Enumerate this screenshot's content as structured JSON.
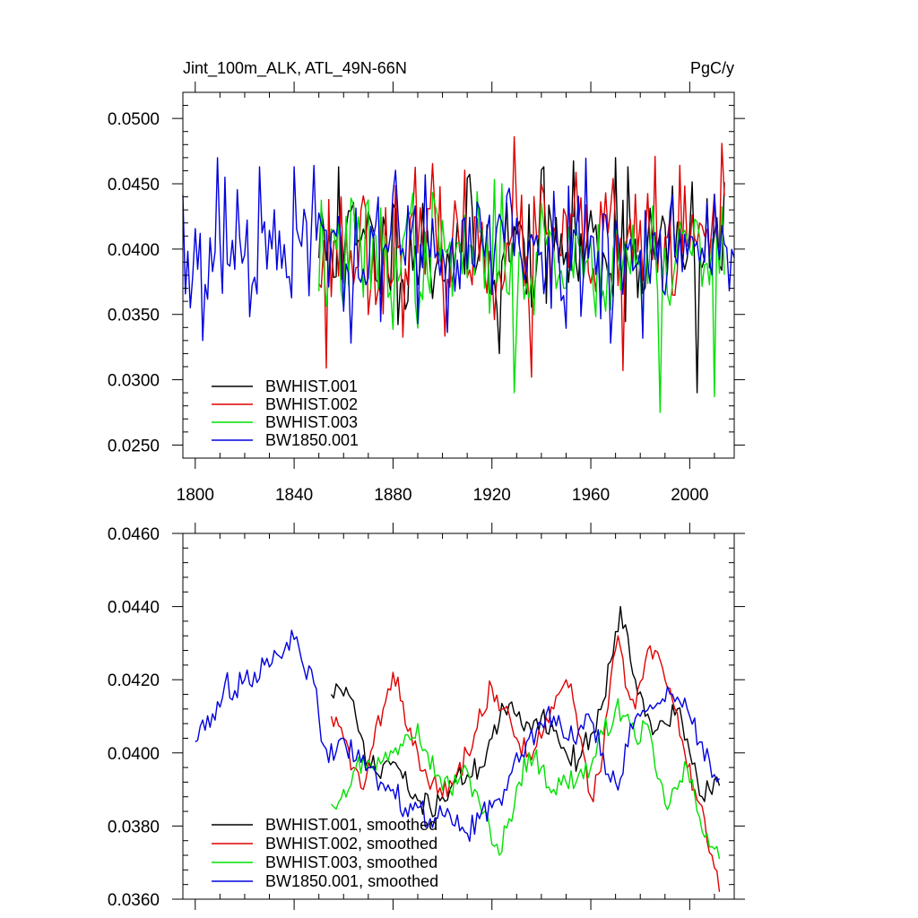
{
  "units_label": "PgC/y",
  "colors": {
    "black": "#000000",
    "red": "#e00000",
    "green": "#00e000",
    "blue": "#0000e0"
  },
  "chart_data": [
    {
      "type": "line",
      "title": "Jint_100m_ALK, ATL_49N-66N",
      "units": "PgC/y",
      "xlim": [
        1795,
        2018
      ],
      "ylim": [
        0.024,
        0.052
      ],
      "xticks": [
        1800,
        1840,
        1880,
        1920,
        1960,
        2000
      ],
      "xtick_labels": [
        "1800",
        "1840",
        "1880",
        "1920",
        "1960",
        "2000"
      ],
      "yticks": [
        0.025,
        0.03,
        0.035,
        0.04,
        0.045,
        0.05
      ],
      "ytick_labels": [
        "0.0250",
        "0.0300",
        "0.0350",
        "0.0400",
        "0.0450",
        "0.0500"
      ],
      "legend": [
        "BWHIST.001",
        "BWHIST.002",
        "BWHIST.003",
        "BW1850.001"
      ],
      "legend_position": "bottom-left",
      "series": [
        {
          "name": "BWHIST.001",
          "color": "#000000",
          "x_start": 1850,
          "x_end": 2014,
          "seed": 11,
          "mean": 0.04,
          "sd": 0.0025,
          "ar": 0.15,
          "lo": 0.0288,
          "hi": 0.047,
          "anchors": [
            [
              1858,
              0.0463
            ],
            [
              1923,
              0.032
            ],
            [
              1941,
              0.0463
            ],
            [
              1970,
              0.047
            ],
            [
              1975,
              0.0463
            ],
            [
              2003,
              0.029
            ]
          ]
        },
        {
          "name": "BWHIST.002",
          "color": "#e00000",
          "x_start": 1850,
          "x_end": 2014,
          "seed": 23,
          "mean": 0.0402,
          "sd": 0.0026,
          "ar": 0.15,
          "lo": 0.0305,
          "hi": 0.0487,
          "anchors": [
            [
              1853,
              0.0309
            ],
            [
              1929,
              0.0486
            ],
            [
              1936,
              0.0302
            ],
            [
              1973,
              0.0307
            ],
            [
              1986,
              0.0471
            ]
          ]
        },
        {
          "name": "BWHIST.003",
          "color": "#00e000",
          "x_start": 1850,
          "x_end": 2014,
          "seed": 37,
          "mean": 0.0395,
          "sd": 0.0025,
          "ar": 0.15,
          "lo": 0.0274,
          "hi": 0.0455,
          "anchors": [
            [
              1929,
              0.029
            ],
            [
              1988,
              0.0275
            ],
            [
              2010,
              0.0287
            ]
          ]
        },
        {
          "name": "BW1850.001",
          "color": "#0000e0",
          "x_start": 1795,
          "x_end": 2018,
          "seed": 53,
          "mean": 0.0402,
          "sd": 0.0028,
          "ar": 0.1,
          "lo": 0.0328,
          "hi": 0.047,
          "anchors": [
            [
              1798,
              0.0355
            ],
            [
              1803,
              0.033
            ],
            [
              1809,
              0.047
            ],
            [
              1812,
              0.0455
            ],
            [
              1826,
              0.0463
            ],
            [
              1840,
              0.0463
            ],
            [
              1890,
              0.0343
            ]
          ]
        }
      ]
    },
    {
      "type": "line",
      "title": "",
      "xlim": [
        1795,
        2018
      ],
      "ylim": [
        0.036,
        0.046
      ],
      "xticks": [
        1800,
        1840,
        1880,
        1920,
        1960,
        2000
      ],
      "yticks": [
        0.036,
        0.038,
        0.04,
        0.042,
        0.044,
        0.046
      ],
      "ytick_labels": [
        "0.0360",
        "0.0380",
        "0.0400",
        "0.0420",
        "0.0440",
        "0.0460"
      ],
      "legend": [
        "BWHIST.001, smoothed",
        "BWHIST.002, smoothed",
        "BWHIST.003, smoothed",
        "BW1850.001, smoothed"
      ],
      "legend_position": "bottom-left",
      "series": [
        {
          "name": "BWHIST.001, smoothed",
          "color": "#000000",
          "x_start": 1855,
          "x_end": 2012,
          "seed": 71,
          "noise": 0.00035,
          "anchors": [
            [
              1855,
              0.0416
            ],
            [
              1858,
              0.0418
            ],
            [
              1862,
              0.0416
            ],
            [
              1866,
              0.0406
            ],
            [
              1870,
              0.0398
            ],
            [
              1874,
              0.0394
            ],
            [
              1878,
              0.0398
            ],
            [
              1882,
              0.0396
            ],
            [
              1886,
              0.039
            ],
            [
              1890,
              0.0387
            ],
            [
              1895,
              0.0385
            ],
            [
              1900,
              0.0388
            ],
            [
              1905,
              0.0392
            ],
            [
              1910,
              0.0394
            ],
            [
              1915,
              0.0396
            ],
            [
              1920,
              0.0404
            ],
            [
              1925,
              0.0412
            ],
            [
              1930,
              0.041
            ],
            [
              1935,
              0.0408
            ],
            [
              1940,
              0.041
            ],
            [
              1945,
              0.0406
            ],
            [
              1950,
              0.04
            ],
            [
              1955,
              0.0398
            ],
            [
              1960,
              0.0405
            ],
            [
              1965,
              0.0414
            ],
            [
              1968,
              0.0425
            ],
            [
              1972,
              0.044
            ],
            [
              1975,
              0.0432
            ],
            [
              1978,
              0.042
            ],
            [
              1982,
              0.041
            ],
            [
              1986,
              0.0406
            ],
            [
              1990,
              0.0408
            ],
            [
              1995,
              0.0412
            ],
            [
              2000,
              0.04
            ],
            [
              2005,
              0.0388
            ],
            [
              2008,
              0.039
            ],
            [
              2012,
              0.0391
            ]
          ]
        },
        {
          "name": "BWHIST.002, smoothed",
          "color": "#e00000",
          "x_start": 1855,
          "x_end": 2012,
          "seed": 83,
          "noise": 0.00035,
          "anchors": [
            [
              1855,
              0.041
            ],
            [
              1860,
              0.0404
            ],
            [
              1864,
              0.0396
            ],
            [
              1868,
              0.039
            ],
            [
              1872,
              0.0402
            ],
            [
              1876,
              0.0412
            ],
            [
              1880,
              0.0422
            ],
            [
              1884,
              0.0414
            ],
            [
              1888,
              0.0402
            ],
            [
              1892,
              0.0395
            ],
            [
              1896,
              0.0392
            ],
            [
              1900,
              0.0388
            ],
            [
              1905,
              0.0393
            ],
            [
              1910,
              0.04
            ],
            [
              1915,
              0.0412
            ],
            [
              1920,
              0.0418
            ],
            [
              1925,
              0.0412
            ],
            [
              1930,
              0.0404
            ],
            [
              1935,
              0.04
            ],
            [
              1940,
              0.0404
            ],
            [
              1945,
              0.0412
            ],
            [
              1950,
              0.042
            ],
            [
              1953,
              0.0414
            ],
            [
              1957,
              0.04
            ],
            [
              1960,
              0.0388
            ],
            [
              1964,
              0.0395
            ],
            [
              1968,
              0.042
            ],
            [
              1971,
              0.0432
            ],
            [
              1974,
              0.0418
            ],
            [
              1978,
              0.0412
            ],
            [
              1982,
              0.0425
            ],
            [
              1986,
              0.0428
            ],
            [
              1990,
              0.042
            ],
            [
              1994,
              0.0412
            ],
            [
              1998,
              0.04
            ],
            [
              2002,
              0.039
            ],
            [
              2006,
              0.0382
            ],
            [
              2009,
              0.0372
            ],
            [
              2012,
              0.0362
            ]
          ]
        },
        {
          "name": "BWHIST.003, smoothed",
          "color": "#00e000",
          "x_start": 1855,
          "x_end": 2012,
          "seed": 97,
          "noise": 0.00035,
          "anchors": [
            [
              1855,
              0.0386
            ],
            [
              1860,
              0.039
            ],
            [
              1865,
              0.0396
            ],
            [
              1870,
              0.0398
            ],
            [
              1875,
              0.0397
            ],
            [
              1880,
              0.04
            ],
            [
              1885,
              0.0405
            ],
            [
              1890,
              0.0408
            ],
            [
              1894,
              0.04
            ],
            [
              1898,
              0.0394
            ],
            [
              1903,
              0.039
            ],
            [
              1908,
              0.0395
            ],
            [
              1913,
              0.039
            ],
            [
              1917,
              0.0384
            ],
            [
              1920,
              0.0375
            ],
            [
              1923,
              0.0372
            ],
            [
              1927,
              0.0382
            ],
            [
              1931,
              0.0392
            ],
            [
              1935,
              0.04
            ],
            [
              1940,
              0.0396
            ],
            [
              1945,
              0.039
            ],
            [
              1950,
              0.0392
            ],
            [
              1955,
              0.0394
            ],
            [
              1960,
              0.0396
            ],
            [
              1965,
              0.0405
            ],
            [
              1970,
              0.0412
            ],
            [
              1974,
              0.041
            ],
            [
              1978,
              0.0404
            ],
            [
              1982,
              0.0408
            ],
            [
              1986,
              0.0396
            ],
            [
              1990,
              0.0386
            ],
            [
              1995,
              0.039
            ],
            [
              1999,
              0.0396
            ],
            [
              2003,
              0.0384
            ],
            [
              2007,
              0.0378
            ],
            [
              2012,
              0.0371
            ]
          ]
        },
        {
          "name": "BW1850.001, smoothed",
          "color": "#0000e0",
          "x_start": 1800,
          "x_end": 2012,
          "seed": 113,
          "noise": 0.00035,
          "anchors": [
            [
              1800,
              0.0403
            ],
            [
              1803,
              0.0409
            ],
            [
              1806,
              0.0407
            ],
            [
              1809,
              0.0414
            ],
            [
              1812,
              0.0419
            ],
            [
              1816,
              0.0417
            ],
            [
              1820,
              0.042
            ],
            [
              1824,
              0.0422
            ],
            [
              1828,
              0.0424
            ],
            [
              1832,
              0.0428
            ],
            [
              1836,
              0.0428
            ],
            [
              1840,
              0.0431
            ],
            [
              1844,
              0.0423
            ],
            [
              1848,
              0.0419
            ],
            [
              1852,
              0.0402
            ],
            [
              1856,
              0.0398
            ],
            [
              1860,
              0.0404
            ],
            [
              1865,
              0.0398
            ],
            [
              1870,
              0.0396
            ],
            [
              1875,
              0.0392
            ],
            [
              1880,
              0.039
            ],
            [
              1885,
              0.0385
            ],
            [
              1890,
              0.0385
            ],
            [
              1895,
              0.0382
            ],
            [
              1900,
              0.0383
            ],
            [
              1905,
              0.038
            ],
            [
              1910,
              0.0378
            ],
            [
              1915,
              0.0382
            ],
            [
              1920,
              0.0385
            ],
            [
              1925,
              0.039
            ],
            [
              1930,
              0.04
            ],
            [
              1935,
              0.0404
            ],
            [
              1940,
              0.0408
            ],
            [
              1945,
              0.041
            ],
            [
              1950,
              0.0404
            ],
            [
              1955,
              0.0406
            ],
            [
              1960,
              0.0409
            ],
            [
              1965,
              0.04
            ],
            [
              1968,
              0.0392
            ],
            [
              1972,
              0.0393
            ],
            [
              1976,
              0.0408
            ],
            [
              1980,
              0.041
            ],
            [
              1985,
              0.0412
            ],
            [
              1990,
              0.0414
            ],
            [
              1993,
              0.0416
            ],
            [
              1996,
              0.0414
            ],
            [
              2000,
              0.041
            ],
            [
              2004,
              0.0403
            ],
            [
              2008,
              0.0398
            ],
            [
              2012,
              0.0393
            ]
          ]
        }
      ]
    }
  ]
}
